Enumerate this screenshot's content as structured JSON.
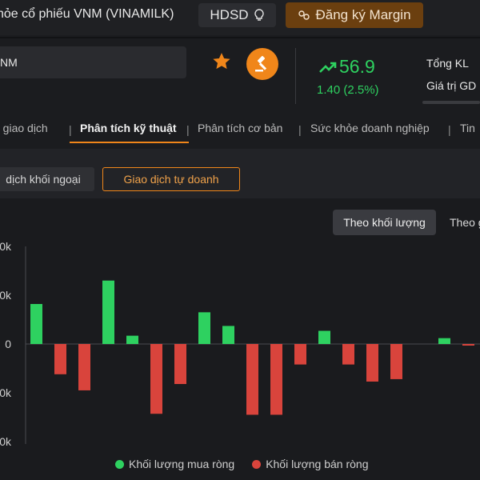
{
  "header": {
    "title": "hỏe cổ phiếu VNM (VINAMILK)",
    "hdsd_label": "HDSD",
    "margin_label": "Đăng ký Margin"
  },
  "search": {
    "value": "NM"
  },
  "quote": {
    "price": "56.9",
    "change": "1.40 (2.5%)",
    "labels": [
      "Tổng KL",
      "Giá trị GD"
    ]
  },
  "tabs": [
    {
      "label": "e giao dịch",
      "active": false
    },
    {
      "label": "Phân tích kỹ thuật",
      "active": true
    },
    {
      "label": "Phân tích cơ bản",
      "active": false
    },
    {
      "label": "Sức khỏe doanh nghiệp",
      "active": false
    },
    {
      "label": "Tin",
      "active": false
    }
  ],
  "subtabs": {
    "foreign": "dịch khối ngoại",
    "proprietary": "Giao dịch tự doanh"
  },
  "toggles": {
    "by_volume": "Theo khối lượng",
    "by_value": "Theo g"
  },
  "colors": {
    "buy": "#2ed160",
    "sell": "#d9443c",
    "accent": "#f0861a"
  },
  "chart_data": {
    "type": "bar",
    "y_tick_labels": [
      "0k",
      "0k",
      "0",
      "0k",
      "0k"
    ],
    "ylim": [
      -2,
      2
    ],
    "gridlines": false,
    "legend_position": "bottom",
    "legend": [
      "Khối lượng mua ròng",
      "Khối lượng bán ròng"
    ],
    "series": [
      {
        "name": "Khối lượng mua ròng",
        "color": "#2ed160",
        "values": [
          0.82,
          null,
          null,
          1.3,
          0.17,
          null,
          null,
          0.65,
          0.37,
          null,
          null,
          null,
          0.27,
          null,
          null,
          null,
          null,
          0.12,
          null,
          null
        ]
      },
      {
        "name": "Khối lượng bán ròng",
        "color": "#d9443c",
        "values": [
          null,
          -0.62,
          -0.95,
          null,
          null,
          -1.43,
          -0.82,
          null,
          null,
          -1.45,
          -1.45,
          -0.42,
          null,
          -0.42,
          -0.77,
          -0.72,
          null,
          null,
          -0.03,
          -0.03
        ]
      }
    ]
  }
}
